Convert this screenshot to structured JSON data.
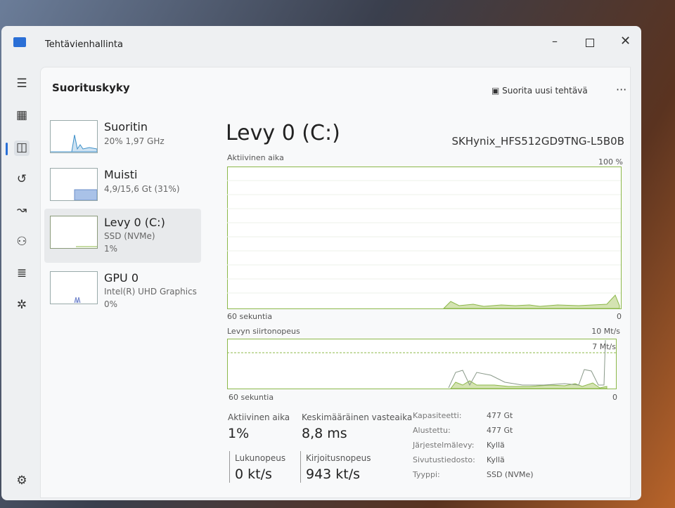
{
  "window": {
    "title": "Tehtävienhallinta"
  },
  "header": {
    "title": "Suorituskyky",
    "run_task": "Suorita uusi tehtävä"
  },
  "sidebar": {
    "items": [
      {
        "name": "Suoritin",
        "lines": [
          "20%  1,97 GHz"
        ]
      },
      {
        "name": "Muisti",
        "lines": [
          "4,9/15,6 Gt (31%)"
        ]
      },
      {
        "name": "Levy 0 (C:)",
        "lines": [
          "SSD (NVMe)",
          "1%"
        ]
      },
      {
        "name": "GPU 0",
        "lines": [
          "Intel(R) UHD Graphics",
          "0%"
        ]
      }
    ]
  },
  "main": {
    "title": "Levy 0 (C:)",
    "model": "SKHynix_HFS512GD9TNG-L5B0B",
    "graph1": {
      "label": "Aktiivinen aika",
      "max": "100 %",
      "time": "60 sekuntia",
      "min": "0"
    },
    "graph2": {
      "label": "Levyn siirtonopeus",
      "max": "10 Mt/s",
      "marker": "7 Mt/s",
      "time": "60 sekuntia",
      "min": "0"
    },
    "stats": [
      {
        "label": "Aktiivinen aika",
        "value": "1%"
      },
      {
        "label": "Keskimääräinen vasteaika",
        "value": "8,8 ms"
      },
      {
        "label": "Lukunopeus",
        "value": "0 kt/s"
      },
      {
        "label": "Kirjoitusnopeus",
        "value": "943 kt/s"
      }
    ],
    "properties": [
      {
        "label": "Kapasiteetti:",
        "value": "477 Gt"
      },
      {
        "label": "Alustettu:",
        "value": "477 Gt"
      },
      {
        "label": "Järjestelmälevy:",
        "value": "Kyllä"
      },
      {
        "label": "Sivutustiedosto:",
        "value": "Kyllä"
      },
      {
        "label": "Tyyppi:",
        "value": "SSD (NVMe)"
      }
    ]
  }
}
